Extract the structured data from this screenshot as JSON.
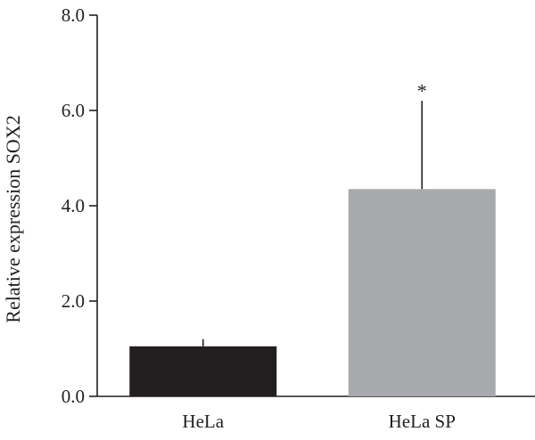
{
  "chart_data": {
    "type": "bar",
    "title": "",
    "xlabel": "",
    "ylabel": "Relative expression SOX2",
    "categories": [
      "HeLa",
      "HeLa SP"
    ],
    "values": [
      1.05,
      4.35
    ],
    "error_upper": [
      1.2,
      6.2
    ],
    "annotations": [
      "",
      "*"
    ],
    "bar_colors": [
      "#231f20",
      "#a7a9ac"
    ],
    "ylim": [
      0,
      8
    ],
    "yticks": [
      0,
      2,
      4,
      6,
      8
    ],
    "ytick_labels": [
      "0.0",
      "2.0",
      "4.0",
      "6.0",
      "8.0"
    ],
    "grid": false,
    "legend": "none"
  }
}
